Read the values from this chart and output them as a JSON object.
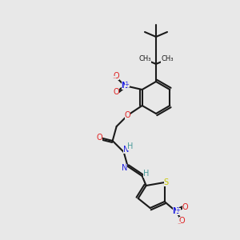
{
  "bg_color": "#e8e8e8",
  "bond_color": "#1a1a1a",
  "bond_width": 1.5,
  "atom_colors": {
    "C": "#1a1a1a",
    "H": "#4a9a9a",
    "N": "#2020e0",
    "O": "#e02020",
    "S": "#c8c800",
    "N+": "#2020e0",
    "O-": "#e02020"
  },
  "font_size": 7,
  "title": ""
}
